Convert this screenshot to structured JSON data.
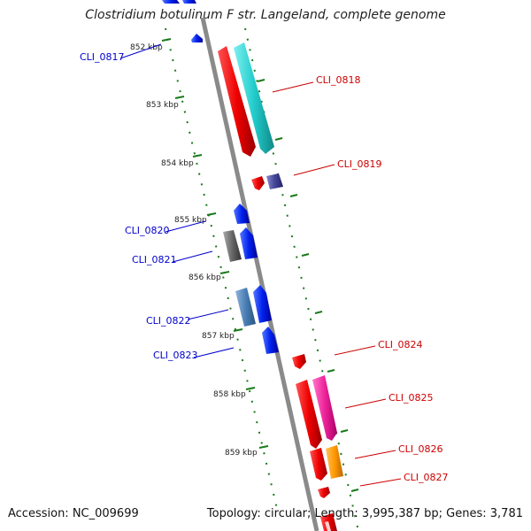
{
  "title": "Clostridium botulinum F str. Langeland, complete genome",
  "footer": {
    "accession": "Accession: NC_009699",
    "summary": "Topology: circular; Length: 3,995,387 bp; Genes: 3,781"
  },
  "colors": {
    "backbone": "#8a8a8a",
    "tick": "#1a7a1a",
    "forward_label": "#0000cc",
    "reverse_label": "#cc0000"
  },
  "scale_labels": [
    "852 kbp",
    "853 kbp",
    "854 kbp",
    "855 kbp",
    "856 kbp",
    "857 kbp",
    "858 kbp",
    "859 kbp"
  ],
  "gene_labels": {
    "left": [
      "CLI_0817",
      "CLI_0820",
      "CLI_0821",
      "CLI_0822",
      "CLI_0823"
    ],
    "right": [
      "CLI_0818",
      "CLI_0819",
      "CLI_0824",
      "CLI_0825",
      "CLI_0826",
      "CLI_0827"
    ]
  }
}
